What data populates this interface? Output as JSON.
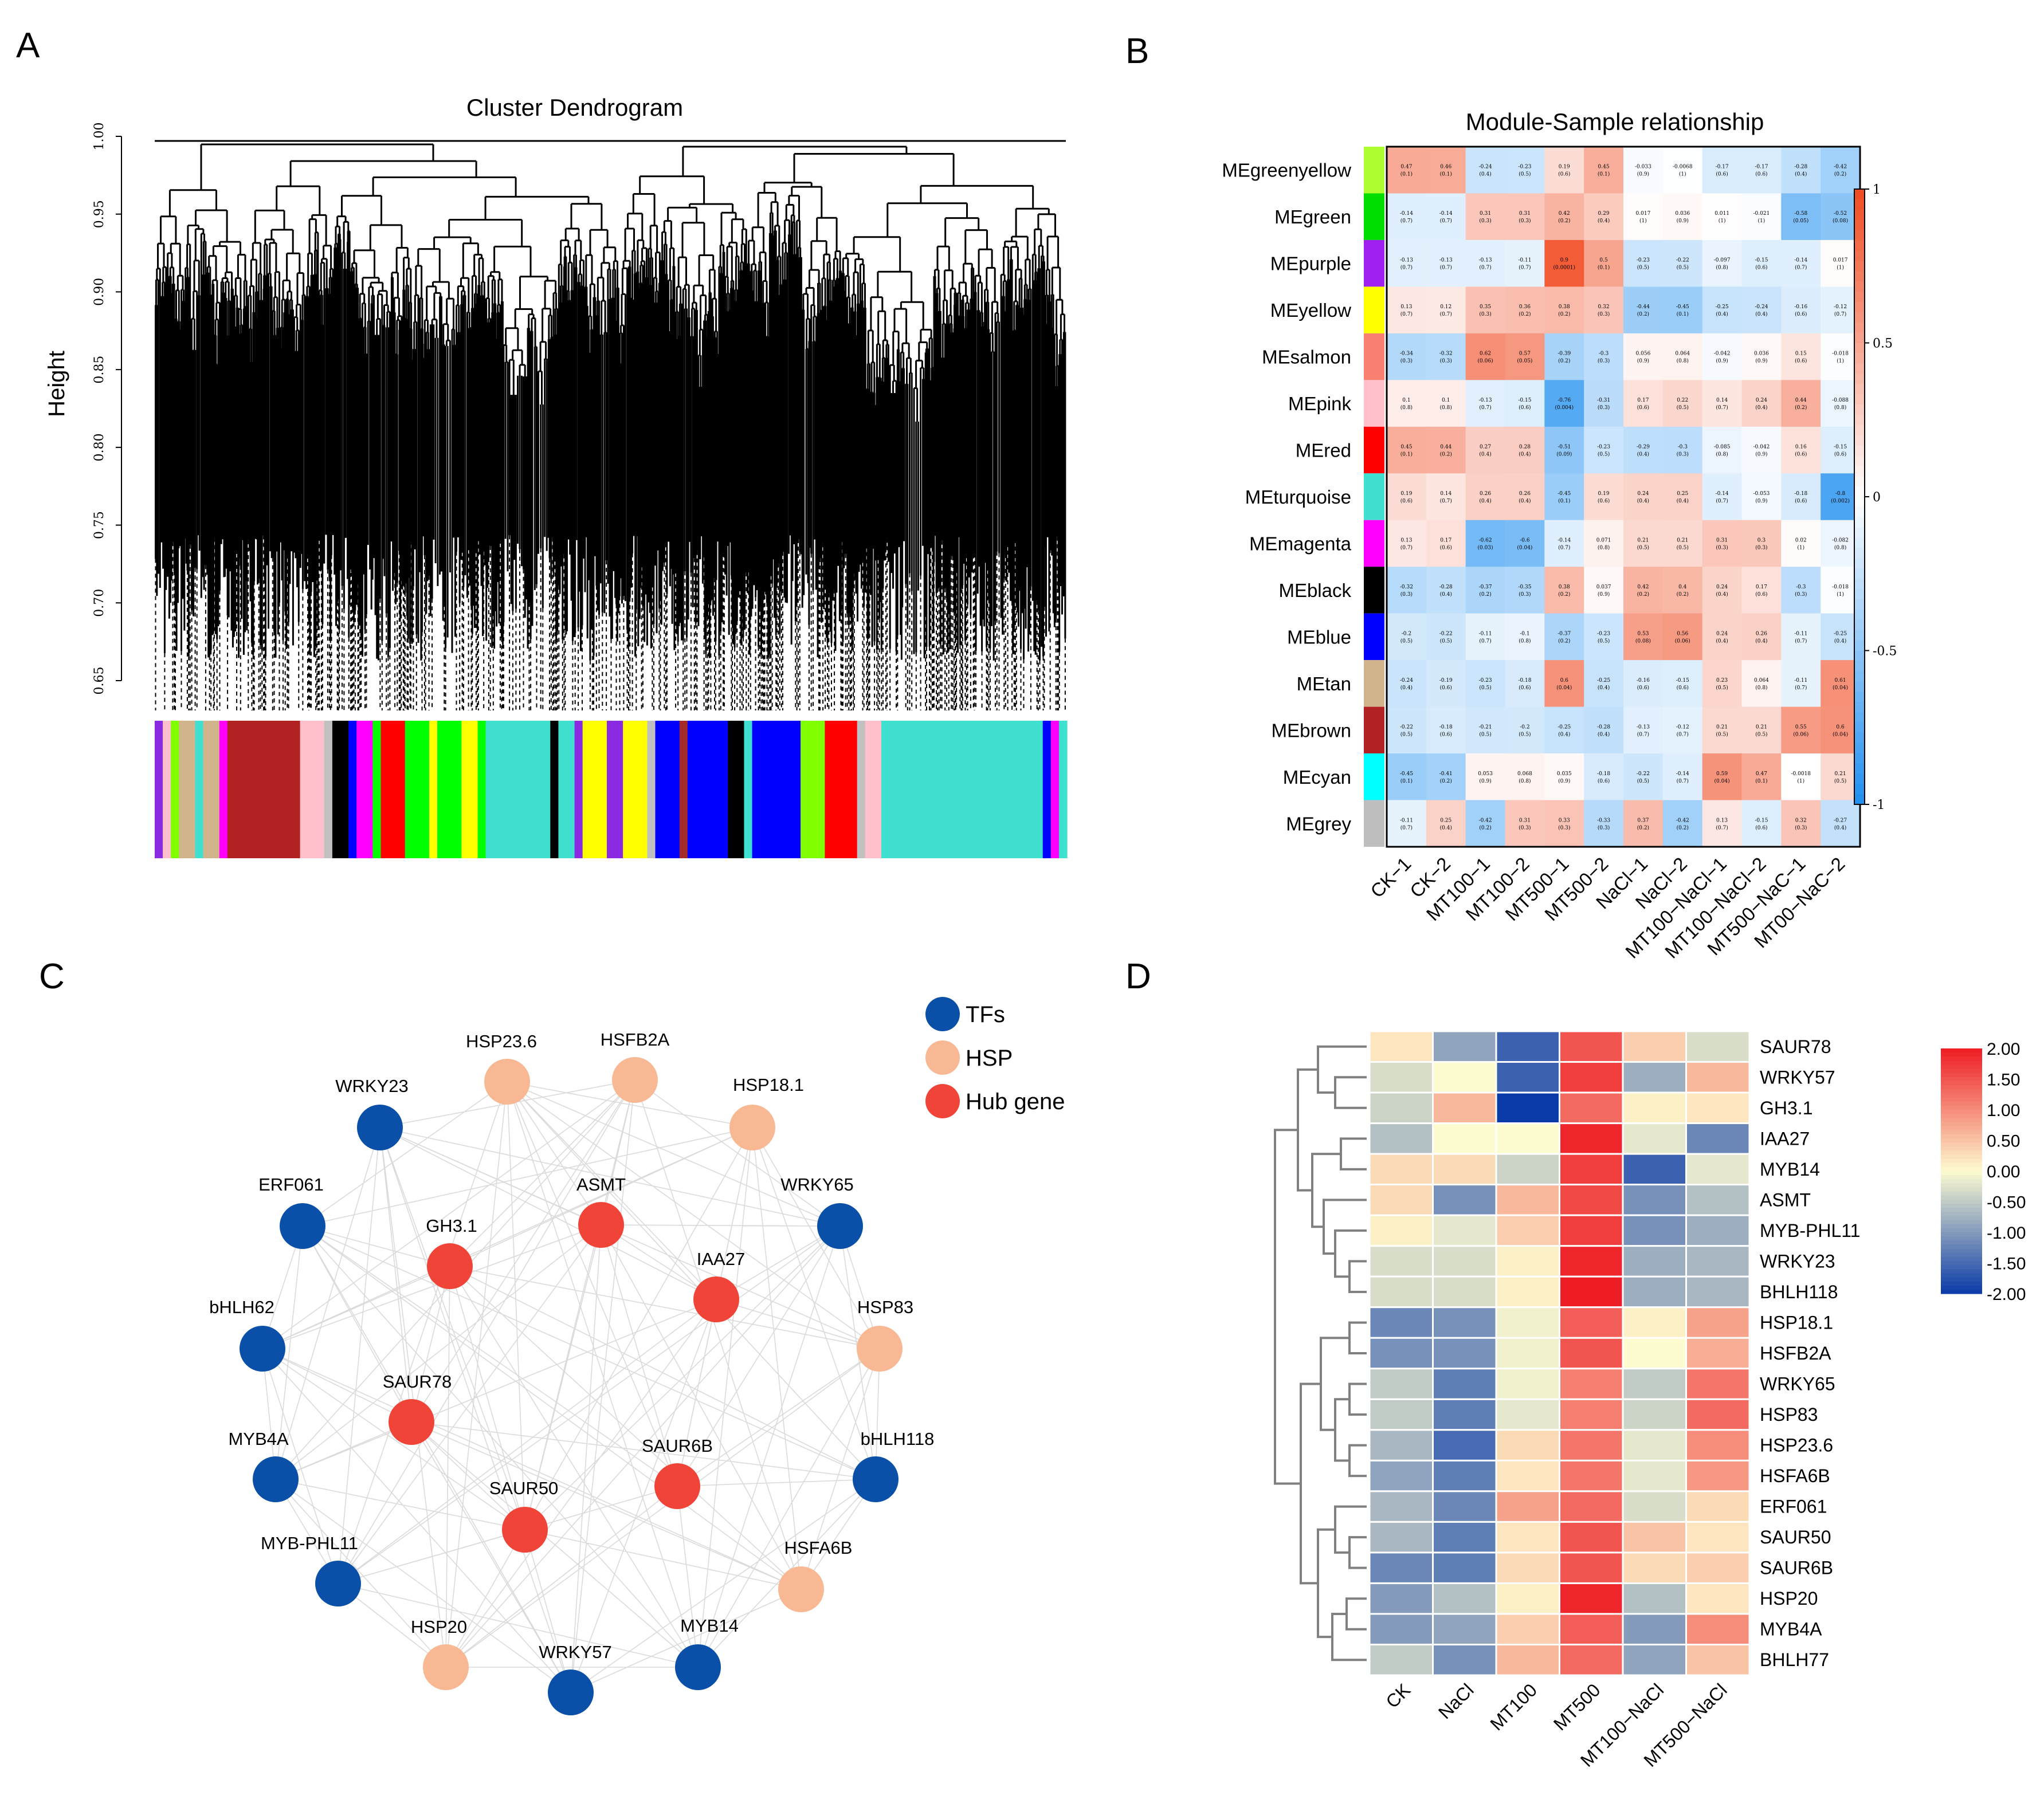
{
  "panels": {
    "A": "A",
    "B": "B",
    "C": "C",
    "D": "D"
  },
  "colors": {
    "tf": "#0a4fa8",
    "hsp": "#f8b894",
    "hub": "#f04438",
    "heat_low": "#1f8ff0",
    "heat_mid": "#ffffff",
    "heat_high": "#f04a20",
    "d_low": "#0a3aa8",
    "d_mid": "#fdfbd0",
    "d_high": "#ee1c24"
  },
  "chart_data": [
    {
      "id": "A",
      "type": "dendrogram",
      "title": "Cluster Dendrogram",
      "ylabel": "Height",
      "ylim": [
        0.65,
        1.0
      ],
      "yticks": [
        "0.65",
        "0.70",
        "0.75",
        "0.80",
        "0.85",
        "0.90",
        "0.95",
        "1.00"
      ],
      "module_colors": [
        {
          "color": "#8a2be2",
          "width": 1
        },
        {
          "color": "#ffc0cb",
          "width": 1
        },
        {
          "color": "#7fff00",
          "width": 1
        },
        {
          "color": "#d2b48c",
          "width": 2
        },
        {
          "color": "#40e0d0",
          "width": 1
        },
        {
          "color": "#d2b48c",
          "width": 2
        },
        {
          "color": "#ff00ff",
          "width": 1
        },
        {
          "color": "#b22222",
          "width": 9
        },
        {
          "color": "#ffc0cb",
          "width": 3
        },
        {
          "color": "#c0c0c0",
          "width": 1
        },
        {
          "color": "#000000",
          "width": 2
        },
        {
          "color": "#0000ff",
          "width": 1
        },
        {
          "color": "#ff00ff",
          "width": 2
        },
        {
          "color": "#00ff00",
          "width": 1
        },
        {
          "color": "#ff0000",
          "width": 3
        },
        {
          "color": "#00ff00",
          "width": 3
        },
        {
          "color": "#ffff00",
          "width": 1
        },
        {
          "color": "#00ff00",
          "width": 3
        },
        {
          "color": "#ffff00",
          "width": 2
        },
        {
          "color": "#00ff00",
          "width": 1
        },
        {
          "color": "#40e0d0",
          "width": 8
        },
        {
          "color": "#000000",
          "width": 1
        },
        {
          "color": "#40e0d0",
          "width": 2
        },
        {
          "color": "#8a2be2",
          "width": 1
        },
        {
          "color": "#ffff00",
          "width": 3
        },
        {
          "color": "#8a2be2",
          "width": 2
        },
        {
          "color": "#ffff00",
          "width": 3
        },
        {
          "color": "#c0c0c0",
          "width": 1
        },
        {
          "color": "#0000ff",
          "width": 3
        },
        {
          "color": "#a52a2a",
          "width": 1
        },
        {
          "color": "#0000ff",
          "width": 5
        },
        {
          "color": "#000000",
          "width": 2
        },
        {
          "color": "#40e0d0",
          "width": 1
        },
        {
          "color": "#0000ff",
          "width": 6
        },
        {
          "color": "#7fff00",
          "width": 3
        },
        {
          "color": "#ff0000",
          "width": 4
        },
        {
          "color": "#c0c0c0",
          "width": 1
        },
        {
          "color": "#ffc0cb",
          "width": 2
        },
        {
          "color": "#40e0d0",
          "width": 20
        },
        {
          "color": "#0000ff",
          "width": 1
        },
        {
          "color": "#ff00ff",
          "width": 1
        },
        {
          "color": "#40e0d0",
          "width": 1
        }
      ]
    },
    {
      "id": "B",
      "type": "heatmap",
      "title": "Module-Sample relationship",
      "rows": [
        "MEgreenyellow",
        "MEgreen",
        "MEpurple",
        "MEyellow",
        "MEsalmon",
        "MEpink",
        "MEred",
        "MEturquoise",
        "MEmagenta",
        "MEblack",
        "MEblue",
        "MEtan",
        "MEbrown",
        "MEcyan",
        "MEgrey"
      ],
      "row_colors": [
        "#adff2f",
        "#00dd00",
        "#a020f0",
        "#ffff00",
        "#fa8072",
        "#ffc0cb",
        "#ff0000",
        "#40e0d0",
        "#ff00ff",
        "#000000",
        "#0000ff",
        "#d2b48c",
        "#b22222",
        "#00ffff",
        "#bebebe"
      ],
      "columns": [
        "CK−1",
        "CK−2",
        "MT100−1",
        "MT100−2",
        "MT500−1",
        "MT500−2",
        "NaCl−1",
        "NaCl−2",
        "MT100−NaCl−1",
        "MT100−NaCl−2",
        "MT500−NaC−1",
        "MT00−NaC−2"
      ],
      "values": [
        [
          0.47,
          0.46,
          -0.24,
          -0.23,
          0.19,
          0.45,
          -0.033,
          -0.0068,
          -0.17,
          -0.17,
          -0.28,
          -0.42
        ],
        [
          -0.14,
          -0.14,
          0.31,
          0.31,
          0.42,
          0.29,
          0.017,
          0.036,
          0.011,
          -0.021,
          -0.58,
          -0.52
        ],
        [
          -0.13,
          -0.13,
          -0.13,
          -0.11,
          0.9,
          0.5,
          -0.23,
          -0.22,
          -0.097,
          -0.15,
          -0.14,
          0.017
        ],
        [
          0.13,
          0.12,
          0.35,
          0.36,
          0.38,
          0.32,
          -0.44,
          -0.45,
          -0.25,
          -0.24,
          -0.16,
          -0.12
        ],
        [
          -0.34,
          -0.32,
          0.62,
          0.57,
          -0.39,
          -0.3,
          0.056,
          0.064,
          -0.042,
          0.036,
          0.15,
          -0.018
        ],
        [
          0.1,
          0.1,
          -0.13,
          -0.15,
          -0.76,
          -0.31,
          0.17,
          0.22,
          0.14,
          0.24,
          0.44,
          -0.088
        ],
        [
          0.45,
          0.44,
          0.27,
          0.28,
          -0.51,
          -0.23,
          -0.29,
          -0.3,
          -0.085,
          -0.042,
          0.16,
          -0.15
        ],
        [
          0.19,
          0.14,
          0.26,
          0.26,
          -0.45,
          0.19,
          0.24,
          0.25,
          -0.14,
          -0.053,
          -0.18,
          -0.8
        ],
        [
          0.13,
          0.17,
          -0.62,
          -0.6,
          -0.14,
          0.071,
          0.21,
          0.21,
          0.31,
          0.3,
          0.02,
          -0.082
        ],
        [
          -0.32,
          -0.28,
          -0.37,
          -0.35,
          0.38,
          0.037,
          0.42,
          0.4,
          0.24,
          0.17,
          -0.3,
          -0.018
        ],
        [
          -0.2,
          -0.22,
          -0.11,
          -0.1,
          -0.37,
          -0.23,
          0.53,
          0.56,
          0.24,
          0.26,
          -0.11,
          -0.25
        ],
        [
          -0.24,
          -0.19,
          -0.23,
          -0.18,
          0.6,
          -0.25,
          -0.16,
          -0.15,
          0.23,
          0.064,
          -0.11,
          0.61
        ],
        [
          -0.22,
          -0.18,
          -0.21,
          -0.2,
          -0.25,
          -0.28,
          -0.13,
          -0.12,
          0.21,
          0.21,
          0.55,
          0.6
        ],
        [
          -0.45,
          -0.41,
          0.053,
          0.068,
          0.035,
          -0.18,
          -0.22,
          -0.14,
          0.59,
          0.47,
          -0.0018,
          0.21
        ],
        [
          -0.11,
          0.25,
          -0.42,
          0.31,
          0.33,
          -0.33,
          0.37,
          -0.42,
          0.13,
          -0.15,
          0.32,
          -0.27
        ]
      ],
      "pvalues": [
        [
          "(0.1)",
          "(0.1)",
          "(0.4)",
          "(0.5)",
          "(0.6)",
          "(0.1)",
          "(0.9)",
          "(1)",
          "(0.6)",
          "(0.6)",
          "(0.4)",
          "(0.2)"
        ],
        [
          "(0.7)",
          "(0.7)",
          "(0.3)",
          "(0.3)",
          "(0.2)",
          "(0.4)",
          "(1)",
          "(0.9)",
          "(1)",
          "(1)",
          "(0.05)",
          "(0.08)"
        ],
        [
          "(0.7)",
          "(0.7)",
          "(0.7)",
          "(0.7)",
          "(0.0001)",
          "(0.1)",
          "(0.5)",
          "(0.5)",
          "(0.8)",
          "(0.6)",
          "(0.7)",
          "(1)"
        ],
        [
          "(0.7)",
          "(0.7)",
          "(0.3)",
          "(0.2)",
          "(0.2)",
          "(0.3)",
          "(0.2)",
          "(0.1)",
          "(0.4)",
          "(0.4)",
          "(0.6)",
          "(0.7)"
        ],
        [
          "(0.3)",
          "(0.3)",
          "(0.06)",
          "(0.05)",
          "(0.2)",
          "(0.3)",
          "(0.9)",
          "(0.8)",
          "(0.9)",
          "(0.9)",
          "(0.6)",
          "(1)"
        ],
        [
          "(0.8)",
          "(0.8)",
          "(0.7)",
          "(0.6)",
          "(0.004)",
          "(0.3)",
          "(0.6)",
          "(0.5)",
          "(0.7)",
          "(0.4)",
          "(0.2)",
          "(0.8)"
        ],
        [
          "(0.1)",
          "(0.2)",
          "(0.4)",
          "(0.4)",
          "(0.09)",
          "(0.5)",
          "(0.4)",
          "(0.3)",
          "(0.8)",
          "(0.9)",
          "(0.6)",
          "(0.6)"
        ],
        [
          "(0.6)",
          "(0.7)",
          "(0.4)",
          "(0.4)",
          "(0.1)",
          "(0.6)",
          "(0.4)",
          "(0.4)",
          "(0.7)",
          "(0.9)",
          "(0.6)",
          "(0.002)"
        ],
        [
          "(0.7)",
          "(0.6)",
          "(0.03)",
          "(0.04)",
          "(0.7)",
          "(0.8)",
          "(0.5)",
          "(0.5)",
          "(0.3)",
          "(0.3)",
          "(1)",
          "(0.8)"
        ],
        [
          "(0.3)",
          "(0.4)",
          "(0.2)",
          "(0.3)",
          "(0.2)",
          "(0.9)",
          "(0.2)",
          "(0.2)",
          "(0.4)",
          "(0.6)",
          "(0.3)",
          "(1)"
        ],
        [
          "(0.5)",
          "(0.5)",
          "(0.7)",
          "(0.8)",
          "(0.2)",
          "(0.5)",
          "(0.08)",
          "(0.06)",
          "(0.4)",
          "(0.4)",
          "(0.7)",
          "(0.4)"
        ],
        [
          "(0.4)",
          "(0.6)",
          "(0.5)",
          "(0.6)",
          "(0.04)",
          "(0.4)",
          "(0.6)",
          "(0.6)",
          "(0.5)",
          "(0.8)",
          "(0.7)",
          "(0.04)"
        ],
        [
          "(0.5)",
          "(0.6)",
          "(0.5)",
          "(0.5)",
          "(0.4)",
          "(0.4)",
          "(0.7)",
          "(0.7)",
          "(0.5)",
          "(0.5)",
          "(0.06)",
          "(0.04)"
        ],
        [
          "(0.1)",
          "(0.2)",
          "(0.9)",
          "(0.8)",
          "(0.9)",
          "(0.6)",
          "(0.5)",
          "(0.7)",
          "(0.04)",
          "(0.1)",
          "(1)",
          "(0.5)"
        ],
        [
          "(0.7)",
          "(0.4)",
          "(0.2)",
          "(0.3)",
          "(0.3)",
          "(0.3)",
          "(0.2)",
          "(0.2)",
          "(0.7)",
          "(0.6)",
          "(0.3)",
          "(0.4)"
        ]
      ],
      "colorbar": {
        "range": [
          -1,
          1
        ],
        "ticks": [
          1,
          0.5,
          0,
          -0.5,
          -1
        ],
        "labels": [
          "1",
          "0.5",
          "0",
          "-0.5",
          "-1"
        ]
      }
    },
    {
      "id": "C",
      "type": "network",
      "legend": [
        {
          "key": "tf",
          "label": "TFs"
        },
        {
          "key": "hsp",
          "label": "HSP"
        },
        {
          "key": "hub",
          "label": "Hub gene"
        }
      ],
      "nodes": [
        {
          "name": "HSP23.6",
          "cat": "hsp"
        },
        {
          "name": "HSFB2A",
          "cat": "hsp"
        },
        {
          "name": "HSP18.1",
          "cat": "hsp"
        },
        {
          "name": "WRKY23",
          "cat": "tf"
        },
        {
          "name": "ERF061",
          "cat": "tf"
        },
        {
          "name": "WRKY65",
          "cat": "tf"
        },
        {
          "name": "bHLH62",
          "cat": "tf"
        },
        {
          "name": "HSP83",
          "cat": "hsp"
        },
        {
          "name": "MYB4A",
          "cat": "tf"
        },
        {
          "name": "bHLH118",
          "cat": "tf"
        },
        {
          "name": "MYB-PHL11",
          "cat": "tf"
        },
        {
          "name": "HSFA6B",
          "cat": "hsp"
        },
        {
          "name": "HSP20",
          "cat": "hsp"
        },
        {
          "name": "WRKY57",
          "cat": "tf"
        },
        {
          "name": "MYB14",
          "cat": "tf"
        },
        {
          "name": "ASMT",
          "cat": "hub"
        },
        {
          "name": "GH3.1",
          "cat": "hub"
        },
        {
          "name": "IAA27",
          "cat": "hub"
        },
        {
          "name": "SAUR78",
          "cat": "hub"
        },
        {
          "name": "SAUR6B",
          "cat": "hub"
        },
        {
          "name": "SAUR50",
          "cat": "hub"
        }
      ]
    },
    {
      "id": "D",
      "type": "heatmap",
      "columns": [
        "CK",
        "NaCl",
        "MT100",
        "MT500",
        "MT100−NaCl",
        "MT500−NaCl"
      ],
      "rows": [
        "SAUR78",
        "WRKY57",
        "GH3.1",
        "IAA27",
        "MYB14",
        "ASMT",
        "MYB-PHL11",
        "WRKY23",
        "BHLH118",
        "HSP18.1",
        "HSFB2A",
        "WRKY65",
        "HSP83",
        "HSP23.6",
        "HSFA6B",
        "ERF061",
        "SAUR50",
        "SAUR6B",
        "HSP20",
        "MYB4A",
        "BHLH77"
      ],
      "values": [
        [
          0.2,
          -0.9,
          -1.6,
          1.5,
          0.4,
          -0.3
        ],
        [
          -0.3,
          0.0,
          -1.6,
          1.7,
          -0.8,
          0.6
        ],
        [
          -0.4,
          0.6,
          -2.0,
          1.3,
          0.1,
          0.2
        ],
        [
          -0.6,
          0.0,
          0.0,
          1.9,
          -0.2,
          -1.2
        ],
        [
          0.3,
          0.3,
          -0.4,
          1.7,
          -1.6,
          -0.2
        ],
        [
          0.3,
          -1.1,
          0.6,
          1.6,
          -1.1,
          -0.6
        ],
        [
          0.1,
          -0.2,
          0.4,
          1.7,
          -1.1,
          -0.8
        ],
        [
          -0.3,
          -0.3,
          0.1,
          1.9,
          -0.8,
          -0.7
        ],
        [
          -0.3,
          -0.3,
          0.1,
          2.0,
          -0.8,
          -0.7
        ],
        [
          -1.2,
          -1.1,
          -0.1,
          1.4,
          0.1,
          0.8
        ],
        [
          -1.1,
          -1.1,
          -0.1,
          1.5,
          0.0,
          0.7
        ],
        [
          -0.5,
          -1.3,
          -0.1,
          1.1,
          -0.5,
          1.2
        ],
        [
          -0.5,
          -1.3,
          -0.2,
          1.1,
          -0.4,
          1.3
        ],
        [
          -0.7,
          -1.5,
          0.3,
          1.2,
          -0.2,
          1.0
        ],
        [
          -0.9,
          -1.3,
          0.2,
          1.2,
          -0.2,
          0.9
        ],
        [
          -0.7,
          -1.2,
          0.8,
          1.3,
          -0.3,
          0.3
        ],
        [
          -0.7,
          -1.3,
          0.2,
          1.5,
          0.5,
          0.2
        ],
        [
          -1.2,
          -1.3,
          0.3,
          1.5,
          0.3,
          0.4
        ],
        [
          -1.0,
          -0.6,
          0.1,
          1.9,
          -0.6,
          0.2
        ],
        [
          -1.0,
          -0.9,
          0.4,
          1.4,
          -1.0,
          1.0
        ],
        [
          -0.5,
          -1.1,
          0.6,
          1.3,
          -0.9,
          0.5
        ]
      ],
      "colorbar": {
        "range": [
          -2,
          2
        ],
        "labels": [
          "2.00",
          "1.50",
          "1.00",
          "0.50",
          "0.00",
          "-0.50",
          "-1.00",
          "-1.50",
          "-2.00"
        ]
      }
    }
  ]
}
